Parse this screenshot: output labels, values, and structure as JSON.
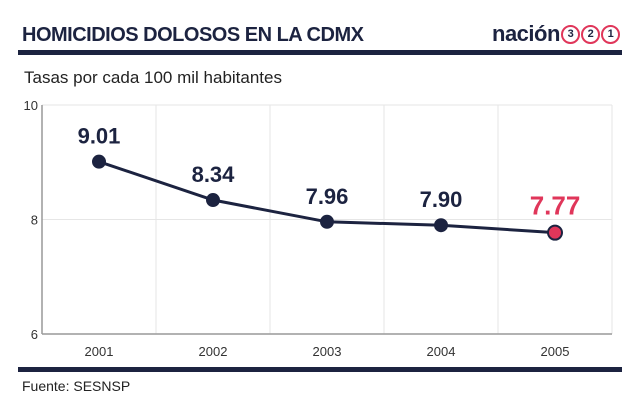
{
  "header": {
    "title": "HOMICIDIOS DOLOSOS EN LA CDMX",
    "logo_text": "nación",
    "logo_digits": [
      "3",
      "2",
      "1"
    ]
  },
  "footer": {
    "source": "Fuente: SESNSP"
  },
  "colors": {
    "line": "#1c2340",
    "highlight": "#e0365a",
    "grid": "#e6e6e6"
  },
  "chart_data": {
    "type": "line",
    "title": "HOMICIDIOS DOLOSOS EN LA CDMX",
    "subtitle": "Tasas por cada 100 mil habitantes",
    "categories": [
      "2001",
      "2002",
      "2003",
      "2004",
      "2005"
    ],
    "values": [
      9.01,
      8.34,
      7.96,
      7.9,
      7.77
    ],
    "data_labels": [
      "9.01",
      "8.34",
      "7.96",
      "7.90",
      "7.77"
    ],
    "highlight_index": 4,
    "ylim": [
      6,
      10
    ],
    "yticks": [
      6,
      8,
      10
    ],
    "grid": true,
    "legend": "none"
  }
}
